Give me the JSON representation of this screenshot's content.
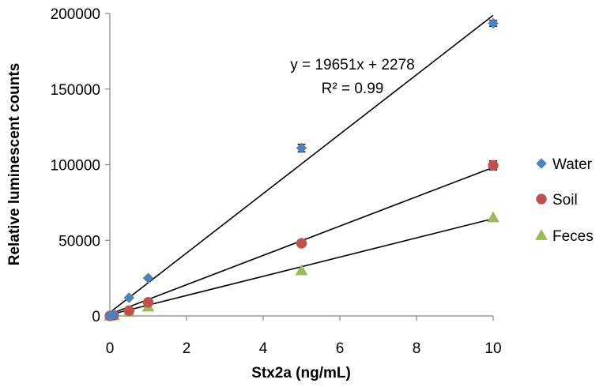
{
  "chart_data": {
    "type": "scatter",
    "title": "",
    "xlabel": "Stx2a (ng/mL)",
    "ylabel": "Relative luminescent counts",
    "xlim": [
      0,
      10
    ],
    "ylim": [
      0,
      200000
    ],
    "x_ticks": [
      0,
      2,
      4,
      6,
      8,
      10
    ],
    "y_ticks": [
      0,
      50000,
      100000,
      150000,
      200000
    ],
    "x_tick_labels": [
      "0",
      "2",
      "4",
      "6",
      "8",
      "10"
    ],
    "y_tick_labels": [
      "0",
      "50000",
      "100000",
      "150000",
      "200000"
    ],
    "grid": false,
    "legend_position": "right",
    "series": [
      {
        "name": "Water",
        "marker": "diamond",
        "color": "#4f81bd",
        "x": [
          0,
          0.1,
          0.5,
          1,
          5,
          10
        ],
        "y": [
          0,
          800,
          12000,
          25000,
          111000,
          193500
        ],
        "errors": [
          0,
          0,
          0,
          0,
          2500,
          2000
        ],
        "trendline": {
          "slope": 19651,
          "intercept": 2278
        }
      },
      {
        "name": "Soil",
        "marker": "circle",
        "color": "#c0504d",
        "x": [
          0,
          0.1,
          0.5,
          1,
          5,
          10
        ],
        "y": [
          0,
          500,
          3500,
          9000,
          48000,
          99500
        ],
        "errors": [
          0,
          0,
          0,
          0,
          0,
          3000
        ],
        "trendline": {
          "slope": 9700,
          "intercept": 1200
        }
      },
      {
        "name": "Feces",
        "marker": "triangle",
        "color": "#9bbb59",
        "x": [
          0,
          0.1,
          0.5,
          1,
          5,
          10
        ],
        "y": [
          0,
          300,
          2500,
          6000,
          30000,
          65000
        ],
        "errors": [
          0,
          0,
          0,
          0,
          0,
          0
        ],
        "trendline": {
          "slope": 6350,
          "intercept": 800
        }
      }
    ],
    "annotations": [
      {
        "text": "y = 19651x + 2278"
      },
      {
        "text": "R² = 0.99"
      }
    ]
  }
}
